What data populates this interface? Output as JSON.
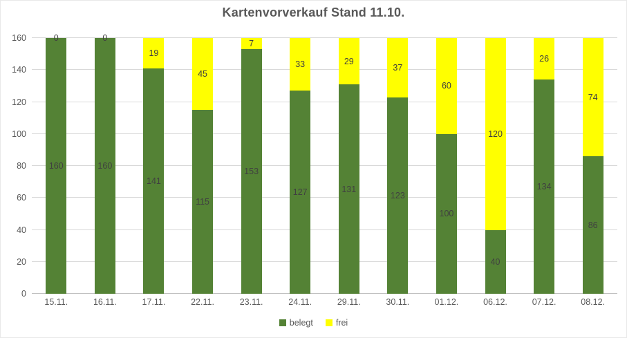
{
  "title": "Kartenvorverkauf Stand 11.10.",
  "colors": {
    "belegt": "#548235",
    "frei": "#FFFF00",
    "title_text": "#595959",
    "axis_text": "#595959",
    "data_label": "#404040",
    "gridline": "#D9D9D9"
  },
  "chart_data": {
    "type": "bar",
    "stacked": true,
    "title": "Kartenvorverkauf Stand 11.10.",
    "categories": [
      "15.11.",
      "16.11.",
      "17.11.",
      "22.11.",
      "23.11.",
      "24.11.",
      "29.11.",
      "30.11.",
      "01.12.",
      "06.12.",
      "07.12.",
      "08.12."
    ],
    "series": [
      {
        "name": "belegt",
        "color": "#548235",
        "values": [
          160,
          160,
          141,
          115,
          153,
          127,
          131,
          123,
          100,
          40,
          134,
          86
        ]
      },
      {
        "name": "frei",
        "color": "#FFFF00",
        "values": [
          0,
          0,
          19,
          45,
          7,
          33,
          29,
          37,
          60,
          120,
          26,
          74
        ]
      }
    ],
    "xlabel": "",
    "ylabel": "",
    "ylim": [
      0,
      160
    ],
    "yticks": [
      0,
      20,
      40,
      60,
      80,
      100,
      120,
      140,
      160
    ],
    "grid": true,
    "data_labels": true,
    "legend_position": "bottom"
  },
  "legend": {
    "items": [
      {
        "label": "belegt",
        "color": "#548235"
      },
      {
        "label": "frei",
        "color": "#FFFF00"
      }
    ]
  }
}
